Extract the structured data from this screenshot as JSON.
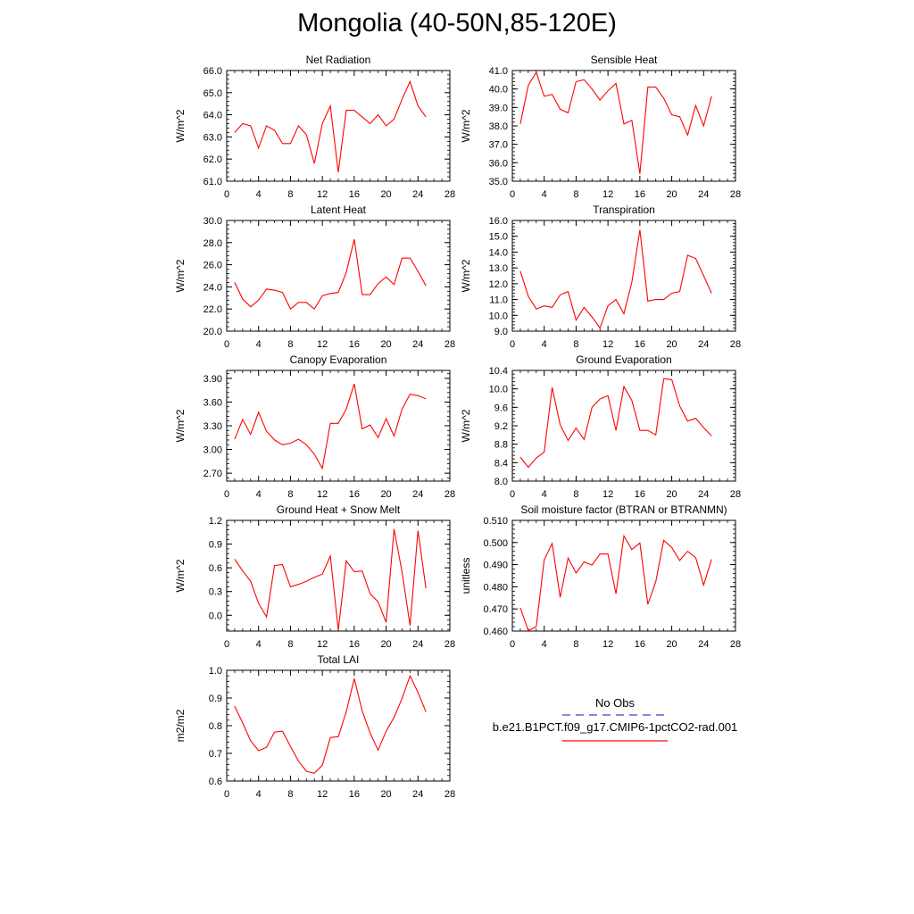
{
  "figure_title": "Mongolia (40-50N,85-120E)",
  "legend": {
    "obs_label": "No Obs",
    "obs_color": "#4040c0",
    "case_label": "b.e21.B1PCT.f09_g17.CMIP6-1pctCO2-rad.001",
    "case_color": "#ff0000"
  },
  "chart_data": [
    {
      "type": "line",
      "title": "Net Radiation",
      "ylabel": "W/m^2",
      "xlim": [
        0,
        28
      ],
      "ylim": [
        61.0,
        66.0
      ],
      "xticks": [
        0,
        4,
        8,
        12,
        16,
        20,
        24,
        28
      ],
      "xtick_labels": [
        "0",
        "4",
        "8",
        "12",
        "16",
        "20",
        "24",
        "28"
      ],
      "yticks": [
        61.0,
        62.0,
        63.0,
        64.0,
        65.0,
        66.0
      ],
      "ytick_labels": [
        "61.0",
        "62.0",
        "63.0",
        "64.0",
        "65.0",
        "66.0"
      ],
      "x": [
        1,
        2,
        3,
        4,
        5,
        6,
        7,
        8,
        9,
        10,
        11,
        12,
        13,
        14,
        15,
        16,
        17,
        18,
        19,
        20,
        21,
        22,
        23,
        24,
        25
      ],
      "series": [
        {
          "values": [
            63.2,
            63.6,
            63.5,
            62.5,
            63.5,
            63.3,
            62.7,
            62.7,
            63.5,
            63.1,
            61.8,
            63.6,
            64.4,
            61.4,
            64.2,
            64.2,
            63.9,
            63.6,
            64.0,
            63.5,
            63.8,
            64.7,
            65.5,
            64.4,
            63.9
          ]
        }
      ]
    },
    {
      "type": "line",
      "title": "Sensible Heat",
      "ylabel": "W/m^2",
      "xlim": [
        0,
        28
      ],
      "ylim": [
        35.0,
        41.0
      ],
      "xticks": [
        0,
        4,
        8,
        12,
        16,
        20,
        24,
        28
      ],
      "xtick_labels": [
        "0",
        "4",
        "8",
        "12",
        "16",
        "20",
        "24",
        "28"
      ],
      "yticks": [
        35.0,
        36.0,
        37.0,
        38.0,
        39.0,
        40.0,
        41.0
      ],
      "ytick_labels": [
        "35.0",
        "36.0",
        "37.0",
        "38.0",
        "39.0",
        "40.0",
        "41.0"
      ],
      "x": [
        1,
        2,
        3,
        4,
        5,
        6,
        7,
        8,
        9,
        10,
        11,
        12,
        13,
        14,
        15,
        16,
        17,
        18,
        19,
        20,
        21,
        22,
        23,
        24,
        25
      ],
      "series": [
        {
          "values": [
            38.1,
            40.2,
            40.9,
            39.6,
            39.7,
            38.9,
            38.7,
            40.4,
            40.5,
            40.0,
            39.4,
            39.9,
            40.3,
            38.1,
            38.3,
            35.4,
            40.1,
            40.1,
            39.5,
            38.6,
            38.5,
            37.5,
            39.1,
            38.0,
            39.6
          ]
        }
      ]
    },
    {
      "type": "line",
      "title": "Latent Heat",
      "ylabel": "W/m^2",
      "xlim": [
        0,
        28
      ],
      "ylim": [
        20.0,
        30.0
      ],
      "xticks": [
        0,
        4,
        8,
        12,
        16,
        20,
        24,
        28
      ],
      "xtick_labels": [
        "0",
        "4",
        "8",
        "12",
        "16",
        "20",
        "24",
        "28"
      ],
      "yticks": [
        20.0,
        22.0,
        24.0,
        26.0,
        28.0,
        30.0
      ],
      "ytick_labels": [
        "20.0",
        "22.0",
        "24.0",
        "26.0",
        "28.0",
        "30.0"
      ],
      "x": [
        1,
        2,
        3,
        4,
        5,
        6,
        7,
        8,
        9,
        10,
        11,
        12,
        13,
        14,
        15,
        16,
        17,
        18,
        19,
        20,
        21,
        22,
        23,
        24,
        25
      ],
      "series": [
        {
          "values": [
            24.4,
            22.9,
            22.2,
            22.8,
            23.8,
            23.7,
            23.5,
            22.0,
            22.6,
            22.6,
            22.0,
            23.2,
            23.4,
            23.5,
            25.3,
            28.3,
            23.3,
            23.3,
            24.3,
            24.9,
            24.2,
            26.6,
            26.6,
            25.4,
            24.1
          ]
        }
      ]
    },
    {
      "type": "line",
      "title": "Transpiration",
      "ylabel": "W/m^2",
      "xlim": [
        0,
        28
      ],
      "ylim": [
        9.0,
        16.0
      ],
      "xticks": [
        0,
        4,
        8,
        12,
        16,
        20,
        24,
        28
      ],
      "xtick_labels": [
        "0",
        "4",
        "8",
        "12",
        "16",
        "20",
        "24",
        "28"
      ],
      "yticks": [
        9.0,
        10.0,
        11.0,
        12.0,
        13.0,
        14.0,
        15.0,
        16.0
      ],
      "ytick_labels": [
        "9.0",
        "10.0",
        "11.0",
        "12.0",
        "13.0",
        "14.0",
        "15.0",
        "16.0"
      ],
      "x": [
        1,
        2,
        3,
        4,
        5,
        6,
        7,
        8,
        9,
        10,
        11,
        12,
        13,
        14,
        15,
        16,
        17,
        18,
        19,
        20,
        21,
        22,
        23,
        24,
        25
      ],
      "series": [
        {
          "values": [
            12.8,
            11.2,
            10.4,
            10.6,
            10.5,
            11.3,
            11.5,
            9.7,
            10.5,
            9.9,
            9.2,
            10.6,
            11.0,
            10.1,
            12.1,
            15.4,
            10.9,
            11.0,
            11.0,
            11.4,
            11.5,
            13.8,
            13.6,
            12.5,
            11.4
          ]
        }
      ]
    },
    {
      "type": "line",
      "title": "Canopy Evaporation",
      "ylabel": "W/m^2",
      "xlim": [
        0,
        28
      ],
      "ylim": [
        2.6,
        4.0
      ],
      "xticks": [
        0,
        4,
        8,
        12,
        16,
        20,
        24,
        28
      ],
      "xtick_labels": [
        "0",
        "4",
        "8",
        "12",
        "16",
        "20",
        "24",
        "28"
      ],
      "yticks": [
        2.7,
        3.0,
        3.3,
        3.6,
        3.9
      ],
      "ytick_labels": [
        "2.70",
        "3.00",
        "3.30",
        "3.60",
        "3.90"
      ],
      "x": [
        1,
        2,
        3,
        4,
        5,
        6,
        7,
        8,
        9,
        10,
        11,
        12,
        13,
        14,
        15,
        16,
        17,
        18,
        19,
        20,
        21,
        22,
        23,
        24,
        25
      ],
      "series": [
        {
          "values": [
            3.13,
            3.38,
            3.19,
            3.47,
            3.23,
            3.12,
            3.06,
            3.08,
            3.13,
            3.06,
            2.94,
            2.76,
            3.33,
            3.33,
            3.51,
            3.83,
            3.26,
            3.31,
            3.15,
            3.39,
            3.17,
            3.51,
            3.7,
            3.68,
            3.64
          ]
        }
      ]
    },
    {
      "type": "line",
      "title": "Ground Evaporation",
      "ylabel": "W/m^2",
      "xlim": [
        0,
        28
      ],
      "ylim": [
        8.0,
        10.4
      ],
      "xticks": [
        0,
        4,
        8,
        12,
        16,
        20,
        24,
        28
      ],
      "xtick_labels": [
        "0",
        "4",
        "8",
        "12",
        "16",
        "20",
        "24",
        "28"
      ],
      "yticks": [
        8.0,
        8.4,
        8.8,
        9.2,
        9.6,
        10.0,
        10.4
      ],
      "ytick_labels": [
        "8.0",
        "8.4",
        "8.8",
        "9.2",
        "9.6",
        "10.0",
        "10.4"
      ],
      "x": [
        1,
        2,
        3,
        4,
        5,
        6,
        7,
        8,
        9,
        10,
        11,
        12,
        13,
        14,
        15,
        16,
        17,
        18,
        19,
        20,
        21,
        22,
        23,
        24,
        25
      ],
      "series": [
        {
          "values": [
            8.52,
            8.3,
            8.5,
            8.63,
            10.03,
            9.22,
            8.88,
            9.15,
            8.9,
            9.6,
            9.78,
            9.85,
            9.1,
            10.05,
            9.75,
            9.1,
            9.1,
            9.0,
            10.22,
            10.2,
            9.63,
            9.3,
            9.36,
            9.16,
            8.98
          ]
        }
      ]
    },
    {
      "type": "line",
      "title": "Ground Heat + Snow Melt",
      "ylabel": "W/m^2",
      "xlim": [
        0,
        28
      ],
      "ylim": [
        -0.2,
        1.2
      ],
      "xticks": [
        0,
        4,
        8,
        12,
        16,
        20,
        24,
        28
      ],
      "xtick_labels": [
        "0",
        "4",
        "8",
        "12",
        "16",
        "20",
        "24",
        "28"
      ],
      "yticks": [
        0.0,
        0.3,
        0.6,
        0.9,
        1.2
      ],
      "ytick_labels": [
        "0.0",
        "0.3",
        "0.6",
        "0.9",
        "1.2"
      ],
      "x": [
        1,
        2,
        3,
        4,
        5,
        6,
        7,
        8,
        9,
        10,
        11,
        12,
        13,
        14,
        15,
        16,
        17,
        18,
        19,
        20,
        21,
        22,
        23,
        24,
        25
      ],
      "series": [
        {
          "values": [
            0.71,
            0.56,
            0.43,
            0.15,
            -0.02,
            0.63,
            0.64,
            0.36,
            0.39,
            0.43,
            0.48,
            0.52,
            0.75,
            -0.19,
            0.69,
            0.55,
            0.56,
            0.27,
            0.17,
            -0.09,
            1.09,
            0.55,
            -0.13,
            1.07,
            0.34
          ]
        }
      ]
    },
    {
      "type": "line",
      "title": "Soil moisture factor (BTRAN or BTRANMN)",
      "ylabel": "unitless",
      "xlim": [
        0,
        28
      ],
      "ylim": [
        0.46,
        0.51
      ],
      "xticks": [
        0,
        4,
        8,
        12,
        16,
        20,
        24,
        28
      ],
      "xtick_labels": [
        "0",
        "4",
        "8",
        "12",
        "16",
        "20",
        "24",
        "28"
      ],
      "yticks": [
        0.46,
        0.47,
        0.48,
        0.49,
        0.5,
        0.51
      ],
      "ytick_labels": [
        "0.460",
        "0.470",
        "0.480",
        "0.490",
        "0.500",
        "0.510"
      ],
      "x": [
        1,
        2,
        3,
        4,
        5,
        6,
        7,
        8,
        9,
        10,
        11,
        12,
        13,
        14,
        15,
        16,
        17,
        18,
        19,
        20,
        21,
        22,
        23,
        24,
        25
      ],
      "series": [
        {
          "values": [
            0.4705,
            0.4602,
            0.462,
            0.4922,
            0.4996,
            0.4752,
            0.493,
            0.4862,
            0.4912,
            0.4898,
            0.4948,
            0.4948,
            0.4768,
            0.503,
            0.4968,
            0.4998,
            0.4721,
            0.4823,
            0.501,
            0.4978,
            0.4919,
            0.496,
            0.4932,
            0.4808,
            0.4924
          ]
        }
      ]
    },
    {
      "type": "line",
      "title": "Total LAI",
      "ylabel": "m2/m2",
      "xlim": [
        0,
        28
      ],
      "ylim": [
        0.6,
        1.0
      ],
      "xticks": [
        0,
        4,
        8,
        12,
        16,
        20,
        24,
        28
      ],
      "xtick_labels": [
        "0",
        "4",
        "8",
        "12",
        "16",
        "20",
        "24",
        "28"
      ],
      "yticks": [
        0.6,
        0.7,
        0.8,
        0.9,
        1.0
      ],
      "ytick_labels": [
        "0.6",
        "0.7",
        "0.8",
        "0.9",
        "1.0"
      ],
      "x": [
        1,
        2,
        3,
        4,
        5,
        6,
        7,
        8,
        9,
        10,
        11,
        12,
        13,
        14,
        15,
        16,
        17,
        18,
        19,
        20,
        21,
        22,
        23,
        24,
        25
      ],
      "series": [
        {
          "values": [
            0.87,
            0.81,
            0.745,
            0.71,
            0.722,
            0.777,
            0.78,
            0.725,
            0.672,
            0.635,
            0.628,
            0.657,
            0.757,
            0.76,
            0.85,
            0.97,
            0.853,
            0.773,
            0.712,
            0.78,
            0.83,
            0.898,
            0.98,
            0.92,
            0.85
          ]
        }
      ]
    }
  ]
}
